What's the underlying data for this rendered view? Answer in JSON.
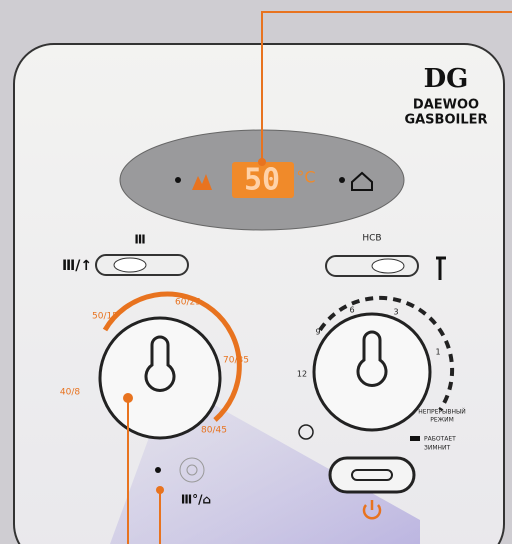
{
  "brand": {
    "logo": "DG",
    "line1": "DAEWOO",
    "line2": "GASBOILER"
  },
  "display": {
    "temperature": "50",
    "unit": "°C"
  },
  "hot_water_switch": {
    "label": "НСВ"
  },
  "heating_dial": {
    "labels": [
      "40/8",
      "50/15",
      "60/25",
      "70/35",
      "80/45"
    ]
  },
  "timer_dial": {
    "labels": [
      "12",
      "9",
      "6",
      "3",
      "1"
    ],
    "continuous": [
      "НЕПРЕРЫВНЫЙ",
      "РЕЖИМ"
    ],
    "legend": [
      "РАБОТАЕТ",
      "ЗИМНИТ"
    ]
  }
}
